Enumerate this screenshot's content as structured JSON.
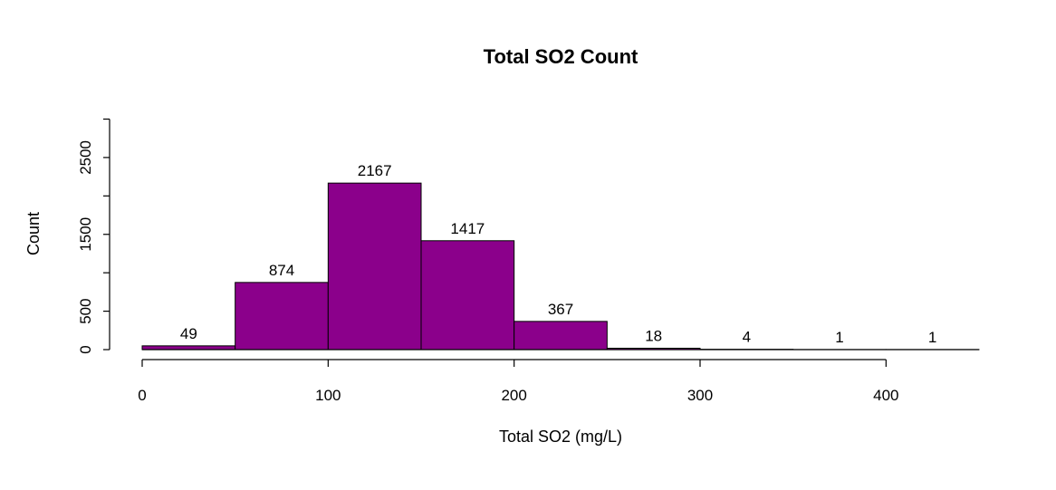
{
  "chart_data": {
    "type": "bar",
    "title": "Total SO2 Count",
    "xlabel": "Total SO2 (mg/L)",
    "ylabel": "Count",
    "bar_color": "#8b008b",
    "bins": [
      {
        "start": 0,
        "end": 50,
        "value": 49,
        "label": "49"
      },
      {
        "start": 50,
        "end": 100,
        "value": 874,
        "label": "874"
      },
      {
        "start": 100,
        "end": 150,
        "value": 2167,
        "label": "2167"
      },
      {
        "start": 150,
        "end": 200,
        "value": 1417,
        "label": "1417"
      },
      {
        "start": 200,
        "end": 250,
        "value": 367,
        "label": "367"
      },
      {
        "start": 250,
        "end": 300,
        "value": 18,
        "label": "18"
      },
      {
        "start": 300,
        "end": 350,
        "value": 4,
        "label": "4"
      },
      {
        "start": 350,
        "end": 400,
        "value": 1,
        "label": "1"
      },
      {
        "start": 400,
        "end": 450,
        "value": 1,
        "label": "1"
      }
    ],
    "x_ticks": [
      0,
      100,
      200,
      300,
      400
    ],
    "x_tick_labels": [
      "0",
      "100",
      "200",
      "300",
      "400"
    ],
    "y_ticks": [
      0,
      500,
      1500,
      2500
    ],
    "y_tick_labels": [
      "0",
      "500",
      "1500",
      "2500"
    ],
    "xlim": [
      0,
      450
    ],
    "ylim": [
      0,
      3000
    ],
    "grid": false,
    "legend": "none"
  }
}
